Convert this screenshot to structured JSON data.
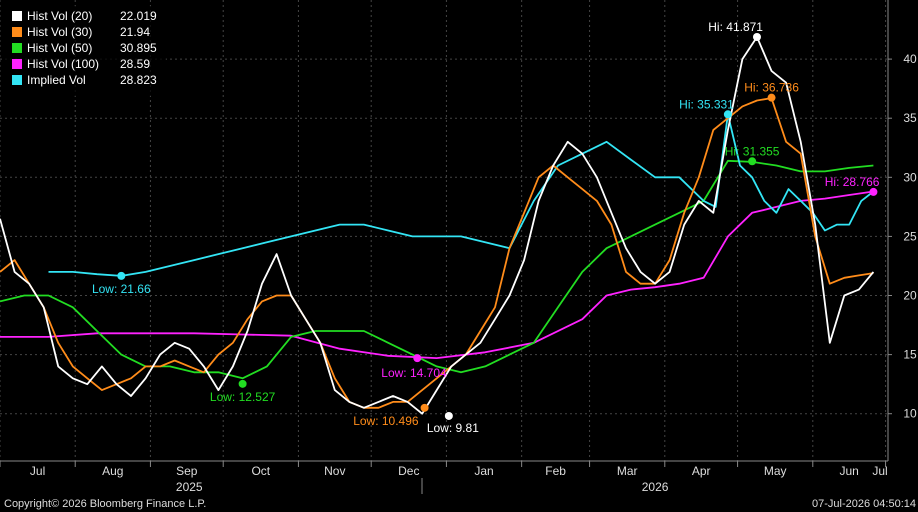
{
  "chart_data": {
    "type": "line",
    "legend": [
      {
        "name": "Hist Vol (20)",
        "value": "22.019",
        "color": "#ffffff"
      },
      {
        "name": "Hist Vol (30)",
        "value": "21.94",
        "color": "#ff8c1a"
      },
      {
        "name": "Hist Vol (50)",
        "value": "30.895",
        "color": "#22dd22"
      },
      {
        "name": "Hist Vol (100)",
        "value": "28.59",
        "color": "#ff22ff"
      },
      {
        "name": "Implied Vol",
        "value": "28.823",
        "color": "#33e5f5"
      }
    ],
    "y_axis": {
      "ticks": [
        "10",
        "15",
        "20",
        "25",
        "30",
        "35",
        "40"
      ],
      "range": [
        6,
        45
      ]
    },
    "x_axis": {
      "months": [
        "Jul",
        "Aug",
        "Sep",
        "Oct",
        "Nov",
        "Dec",
        "Jan",
        "Feb",
        "Mar",
        "Apr",
        "May",
        "Jun",
        "Jul"
      ],
      "years": [
        "2025",
        "2026"
      ]
    },
    "series": [
      {
        "name": "Hist Vol (20)",
        "color": "#ffffff",
        "x": [
          0,
          6,
          12,
          18,
          24,
          30,
          36,
          42,
          48,
          54,
          60,
          66,
          72,
          78,
          84,
          90,
          96,
          102,
          108,
          114,
          120,
          126,
          132,
          138,
          144,
          150,
          156,
          162,
          168,
          174,
          180,
          186,
          192,
          198,
          204,
          210,
          216,
          222,
          228,
          234,
          240,
          246,
          252,
          258,
          264,
          270,
          276,
          282,
          288,
          294,
          300,
          306,
          312,
          318,
          324,
          330,
          336,
          342,
          348,
          354,
          360
        ],
        "y": [
          26.5,
          22,
          21,
          19,
          14,
          13,
          12.5,
          14,
          12.5,
          11.5,
          13,
          15,
          16,
          15.5,
          14,
          12,
          14,
          17,
          21,
          23.5,
          20,
          18,
          16,
          12,
          11,
          10.5,
          11,
          11.5,
          11,
          10,
          12,
          14,
          15,
          16,
          18,
          20,
          23,
          28,
          31,
          33,
          32,
          30,
          27,
          24,
          22,
          21,
          22,
          26,
          28,
          27,
          34,
          40,
          41.87,
          39,
          38,
          33,
          26,
          16,
          20,
          20.5,
          22
        ]
      },
      {
        "name": "Hist Vol (30)",
        "color": "#ff8c1a",
        "x": [
          0,
          6,
          12,
          18,
          24,
          30,
          36,
          42,
          48,
          54,
          60,
          66,
          72,
          78,
          84,
          90,
          96,
          102,
          108,
          114,
          120,
          126,
          132,
          138,
          144,
          150,
          156,
          162,
          168,
          174,
          180,
          186,
          192,
          198,
          204,
          210,
          216,
          222,
          228,
          234,
          240,
          246,
          252,
          258,
          264,
          270,
          276,
          282,
          288,
          294,
          300,
          306,
          312,
          318,
          324,
          330,
          336,
          342,
          348,
          354,
          360
        ],
        "y": [
          22,
          23,
          21,
          19,
          16,
          14,
          13,
          12,
          12.5,
          13,
          14,
          14,
          14.5,
          14,
          13.5,
          15,
          16,
          18,
          19.5,
          20,
          20,
          18,
          16,
          13,
          11,
          10.5,
          10.5,
          11,
          11,
          12,
          13,
          14,
          15,
          17,
          19,
          24,
          27,
          30,
          31,
          30,
          29,
          28,
          26,
          22,
          21,
          21,
          23,
          27,
          30,
          34,
          35,
          36,
          36.5,
          36.7,
          33,
          32,
          25,
          21,
          21.5,
          21.7,
          21.9
        ]
      },
      {
        "name": "Hist Vol (50)",
        "color": "#22dd22",
        "x": [
          0,
          10,
          20,
          30,
          40,
          50,
          60,
          70,
          80,
          90,
          100,
          110,
          120,
          130,
          140,
          150,
          160,
          170,
          180,
          190,
          200,
          210,
          220,
          230,
          240,
          250,
          260,
          270,
          280,
          290,
          300,
          310,
          320,
          330,
          340,
          350,
          360
        ],
        "y": [
          19.5,
          20,
          20,
          19,
          17,
          15,
          14,
          14,
          13.5,
          13.5,
          13,
          14,
          16.5,
          17,
          17,
          17,
          16,
          15,
          14,
          13.5,
          14,
          15,
          16,
          19,
          22,
          24,
          25,
          26,
          27,
          28,
          31.4,
          31.3,
          31,
          30.5,
          30.5,
          30.8,
          31
        ]
      },
      {
        "name": "Hist Vol (100)",
        "color": "#ff22ff",
        "x": [
          0,
          20,
          40,
          60,
          80,
          100,
          120,
          140,
          160,
          180,
          200,
          220,
          240,
          250,
          260,
          270,
          280,
          290,
          300,
          310,
          320,
          330,
          340,
          350,
          360
        ],
        "y": [
          16.5,
          16.5,
          16.8,
          16.8,
          16.8,
          16.7,
          16.6,
          15.5,
          14.9,
          14.704,
          15.2,
          16,
          18,
          20,
          20.5,
          20.7,
          21,
          21.5,
          25,
          27,
          27.5,
          28,
          28.2,
          28.5,
          28.8
        ]
      },
      {
        "name": "Implied Vol",
        "color": "#33e5f5",
        "x": [
          20,
          30,
          40,
          50,
          60,
          70,
          80,
          90,
          100,
          110,
          120,
          130,
          140,
          150,
          160,
          170,
          180,
          190,
          200,
          210,
          220,
          230,
          240,
          250,
          260,
          270,
          280,
          290,
          295,
          300,
          305,
          310,
          315,
          320,
          325,
          330,
          335,
          340,
          345,
          350,
          355,
          360
        ],
        "y": [
          22,
          22,
          21.8,
          21.66,
          22,
          22.5,
          23,
          23.5,
          24,
          24.5,
          25,
          25.5,
          26,
          26,
          25.5,
          25,
          25,
          25,
          24.5,
          24,
          28,
          31,
          32,
          33,
          31.5,
          30,
          30,
          28,
          27.5,
          35.331,
          31,
          30,
          28,
          27,
          29,
          28,
          27,
          25.5,
          26,
          26,
          28,
          28.8
        ]
      }
    ],
    "annotations": [
      {
        "text": "Hi: 41.871",
        "color": "#ffffff",
        "series": "Hist Vol (20)",
        "x": 312,
        "y": 41.871,
        "anchor": "end"
      },
      {
        "text": "Hi: 36.736",
        "color": "#ff8c1a",
        "series": "Hist Vol (30)",
        "x": 318,
        "y": 36.736,
        "anchor": "middle"
      },
      {
        "text": "Hi: 35.331",
        "color": "#33e5f5",
        "series": "Implied Vol",
        "x": 300,
        "y": 35.331,
        "anchor": "end"
      },
      {
        "text": "Hi: 31.355",
        "color": "#22dd22",
        "series": "Hist Vol (50)",
        "x": 310,
        "y": 31.355,
        "anchor": "middle"
      },
      {
        "text": "Hi: 28.766",
        "color": "#ff22ff",
        "series": "Hist Vol (100)",
        "x": 360,
        "y": 28.766,
        "anchor": "end"
      },
      {
        "text": "Low: 21.66",
        "color": "#33e5f5",
        "series": "Implied Vol",
        "x": 50,
        "y": 21.66,
        "anchor": "middle"
      },
      {
        "text": "Low: 12.527",
        "color": "#22dd22",
        "series": "Hist Vol (50)",
        "x": 100,
        "y": 12.527,
        "anchor": "middle"
      },
      {
        "text": "Low: 14.704",
        "color": "#ff22ff",
        "series": "Hist Vol (100)",
        "x": 172,
        "y": 14.704,
        "anchor": "start"
      },
      {
        "text": "Low: 10.496",
        "color": "#ff8c1a",
        "series": "Hist Vol (30)",
        "x": 175,
        "y": 10.496,
        "anchor": "end"
      },
      {
        "text": "Low: 9.81",
        "color": "#ffffff",
        "series": "Hist Vol (20)",
        "x": 185,
        "y": 9.81,
        "anchor": "middle"
      }
    ]
  },
  "footer": {
    "copyright": "Copyright© 2026 Bloomberg Finance L.P.",
    "timestamp": "07-Jul-2026 04:50:14"
  }
}
